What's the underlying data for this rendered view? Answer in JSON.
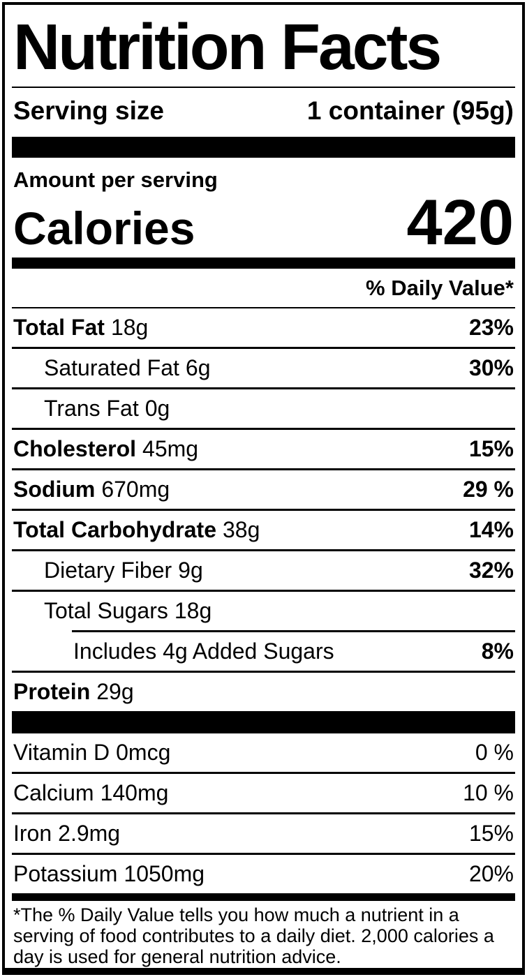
{
  "title": "Nutrition Facts",
  "serving": {
    "label": "Serving size",
    "value": "1 container (95g)"
  },
  "calories_section": {
    "amount_per_label": "Amount per serving",
    "calories_label": "Calories",
    "calories_value": "420"
  },
  "daily_value_header": "% Daily Value*",
  "nutrients": [
    {
      "name": "Total Fat",
      "amount": "18g",
      "dv": "23%"
    },
    {
      "name": "Saturated Fat",
      "amount": "6g",
      "dv": "30%"
    },
    {
      "name": "Trans Fat",
      "amount": "0g",
      "dv": ""
    },
    {
      "name": "Cholesterol",
      "amount": "45mg",
      "dv": "15%"
    },
    {
      "name": "Sodium",
      "amount": "670mg",
      "dv": "29 %"
    },
    {
      "name": "Total Carbohydrate",
      "amount": "38g",
      "dv": "14%"
    },
    {
      "name": "Dietary Fiber",
      "amount": "9g",
      "dv": "32%"
    },
    {
      "name": "Total Sugars",
      "amount": "18g",
      "dv": ""
    },
    {
      "name": "Includes 4g Added Sugars",
      "amount": "",
      "dv": "8%"
    },
    {
      "name": "Protein",
      "amount": "29g",
      "dv": ""
    }
  ],
  "micronutrients": [
    {
      "name": "Vitamin D",
      "amount": "0mcg",
      "dv": "0 %"
    },
    {
      "name": "Calcium",
      "amount": "140mg",
      "dv": "10 %"
    },
    {
      "name": "Iron",
      "amount": "2.9mg",
      "dv": "15%"
    },
    {
      "name": "Potassium",
      "amount": "1050mg",
      "dv": "20%"
    }
  ],
  "footnote": "*The % Daily Value tells you how much a nutrient in a serving of food contributes to a daily diet. 2,000 calories a day is used for general nutrition advice.",
  "colors": {
    "ink": "#000000",
    "background": "#ffffff"
  }
}
